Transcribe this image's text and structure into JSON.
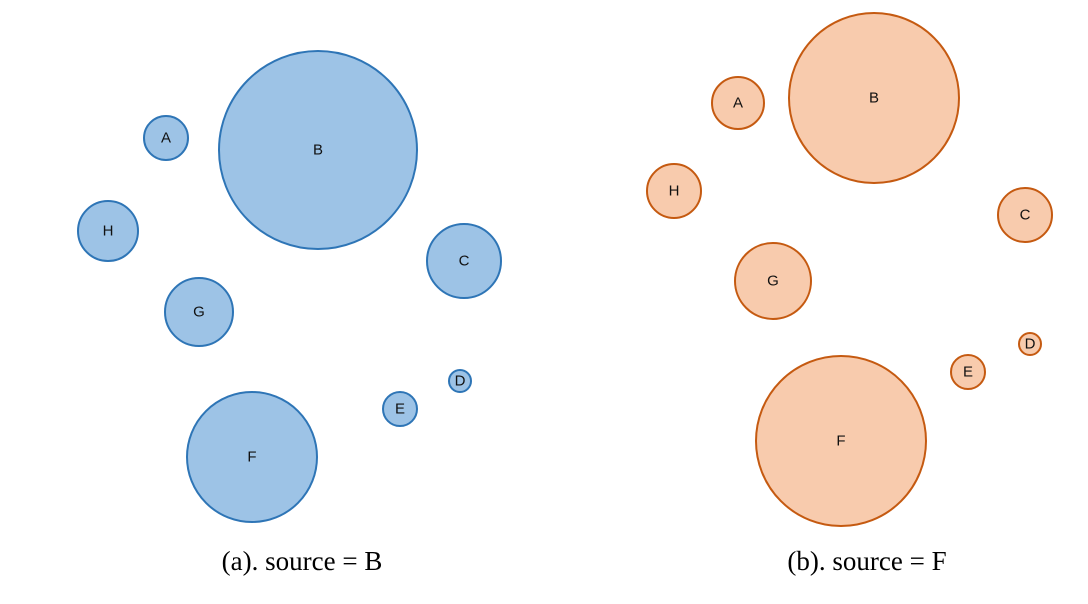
{
  "panels": [
    {
      "caption": "(a). source = B",
      "fill": "#9dc3e6",
      "stroke": "#2e75b6",
      "nodes": [
        "A",
        "B",
        "C",
        "D",
        "E",
        "F",
        "G",
        "H"
      ]
    },
    {
      "caption": "(b). source = F",
      "fill": "#f8cbad",
      "stroke": "#c55a11",
      "nodes": [
        "A",
        "B",
        "C",
        "D",
        "E",
        "F",
        "G",
        "H"
      ]
    }
  ]
}
